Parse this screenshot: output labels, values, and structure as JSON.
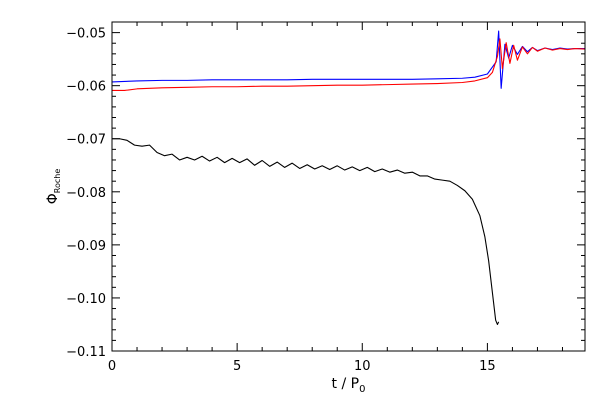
{
  "chart_data": {
    "type": "line",
    "title": "",
    "xlabel": {
      "main": "t / P",
      "sub": "0"
    },
    "ylabel": {
      "main": "Φ",
      "sub": "Roche"
    },
    "xlim": [
      0,
      18.9
    ],
    "ylim": [
      -0.11,
      -0.048
    ],
    "xticks": [
      0,
      5,
      10,
      15
    ],
    "xtick_labels": [
      "0",
      "5",
      "10",
      "15"
    ],
    "yticks": [
      -0.11,
      -0.1,
      -0.09,
      -0.08,
      -0.07,
      -0.06,
      -0.05
    ],
    "ytick_labels": [
      "−0.11",
      "−0.10",
      "−0.09",
      "−0.08",
      "−0.07",
      "−0.06",
      "−0.05"
    ],
    "grid": false,
    "legend": "none",
    "series": [
      {
        "color": "#0000ff",
        "x": [
          0,
          0.5,
          1,
          2,
          3,
          4,
          5,
          6,
          7,
          8,
          9,
          10,
          11,
          12,
          13,
          14,
          14.5,
          15,
          15.2,
          15.35,
          15.45,
          15.55,
          15.7,
          15.85,
          16,
          16.2,
          16.4,
          16.6,
          16.8,
          17,
          17.3,
          17.6,
          17.9,
          18.2,
          18.5,
          18.9
        ],
        "y": [
          -0.0593,
          -0.0592,
          -0.0591,
          -0.059,
          -0.059,
          -0.0589,
          -0.0589,
          -0.0589,
          -0.0589,
          -0.0588,
          -0.0588,
          -0.0588,
          -0.0588,
          -0.0588,
          -0.0587,
          -0.0586,
          -0.0584,
          -0.0578,
          -0.0565,
          -0.0555,
          -0.0497,
          -0.0605,
          -0.0522,
          -0.0548,
          -0.0524,
          -0.0541,
          -0.0526,
          -0.0536,
          -0.0528,
          -0.0534,
          -0.0529,
          -0.0532,
          -0.0529,
          -0.0531,
          -0.053,
          -0.053
        ]
      },
      {
        "color": "#ff0000",
        "x": [
          0,
          0.5,
          1,
          2,
          3,
          4,
          5,
          6,
          7,
          8,
          9,
          10,
          11,
          12,
          13,
          14,
          14.5,
          15,
          15.2,
          15.4,
          15.5,
          15.6,
          15.75,
          15.9,
          16.05,
          16.2,
          16.4,
          16.6,
          16.8,
          17,
          17.3,
          17.6,
          17.9,
          18.2,
          18.5,
          18.9
        ],
        "y": [
          -0.0609,
          -0.0609,
          -0.0606,
          -0.0604,
          -0.0603,
          -0.0602,
          -0.0602,
          -0.0601,
          -0.0601,
          -0.06,
          -0.0599,
          -0.0599,
          -0.0598,
          -0.0597,
          -0.0596,
          -0.0594,
          -0.0591,
          -0.0585,
          -0.0575,
          -0.0545,
          -0.0512,
          -0.0568,
          -0.0519,
          -0.0558,
          -0.0524,
          -0.0552,
          -0.0527,
          -0.054,
          -0.0528,
          -0.0535,
          -0.0529,
          -0.0533,
          -0.053,
          -0.0532,
          -0.053,
          -0.0531
        ]
      },
      {
        "color": "#000000",
        "x": [
          0,
          0.3,
          0.6,
          0.9,
          1.2,
          1.5,
          1.8,
          2.1,
          2.4,
          2.7,
          3.0,
          3.3,
          3.6,
          3.9,
          4.2,
          4.5,
          4.8,
          5.1,
          5.4,
          5.7,
          6.0,
          6.3,
          6.6,
          6.9,
          7.2,
          7.5,
          7.8,
          8.1,
          8.4,
          8.7,
          9.0,
          9.3,
          9.6,
          9.9,
          10.2,
          10.5,
          10.8,
          11.1,
          11.4,
          11.7,
          12.0,
          12.3,
          12.6,
          12.9,
          13.2,
          13.5,
          13.8,
          14.1,
          14.4,
          14.7,
          14.9,
          15.05,
          15.15,
          15.25,
          15.33,
          15.4,
          15.45
        ],
        "y": [
          -0.07,
          -0.07,
          -0.0703,
          -0.0712,
          -0.0714,
          -0.0712,
          -0.0726,
          -0.0732,
          -0.0729,
          -0.074,
          -0.0735,
          -0.074,
          -0.0733,
          -0.0742,
          -0.0735,
          -0.0745,
          -0.0737,
          -0.0745,
          -0.0738,
          -0.075,
          -0.0741,
          -0.0752,
          -0.0744,
          -0.0754,
          -0.0746,
          -0.0756,
          -0.0749,
          -0.0757,
          -0.0751,
          -0.0758,
          -0.0751,
          -0.0759,
          -0.0753,
          -0.076,
          -0.0754,
          -0.0762,
          -0.0757,
          -0.0763,
          -0.0759,
          -0.0765,
          -0.0763,
          -0.077,
          -0.077,
          -0.0776,
          -0.0778,
          -0.078,
          -0.0788,
          -0.0798,
          -0.0814,
          -0.0845,
          -0.0885,
          -0.093,
          -0.097,
          -0.101,
          -0.1042,
          -0.105,
          -0.1045
        ]
      }
    ]
  }
}
